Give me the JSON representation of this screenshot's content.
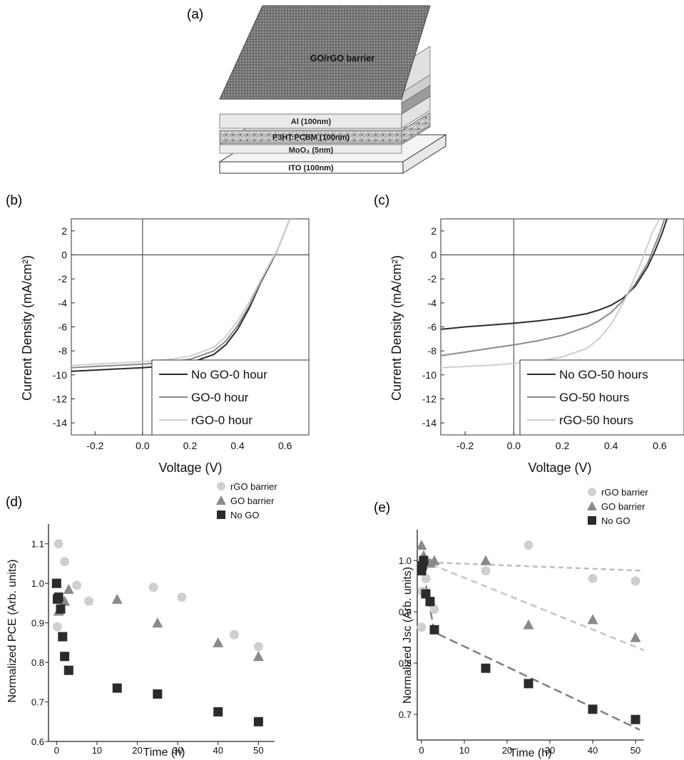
{
  "panels": {
    "a": {
      "label": "(a)",
      "layers": {
        "barrier": "GO/rGO barrier",
        "al": "Al (100nm)",
        "active": "P3HT:PCBM (100nm)",
        "moo3": "MoO₃ (5nm)",
        "ito": "ITO (100nm)"
      }
    },
    "b": {
      "label": "(b)"
    },
    "c": {
      "label": "(c)"
    },
    "d": {
      "label": "(d)"
    },
    "e": {
      "label": "(e)"
    }
  },
  "colors": {
    "dark": "#2b2b2b",
    "mid": "#8a8a8a",
    "light": "#cfcfcf",
    "fit_light": "#bdbdbd",
    "fit_mid": "#c4c4c4",
    "fit_dark": "#7f7f7f"
  },
  "chart_data": [
    {
      "id": "b",
      "type": "line",
      "xlabel": "Voltage (V)",
      "ylabel": "Current Density (mA/cm²)",
      "xlim": [
        -0.3,
        0.7
      ],
      "ylim": [
        -15,
        3
      ],
      "xticks": [
        -0.2,
        0.0,
        0.2,
        0.4,
        0.6
      ],
      "xtick_labels": [
        "-0.2",
        "0.0",
        "0.2",
        "0.4",
        "0.6"
      ],
      "yticks": [
        2,
        0,
        -2,
        -4,
        -6,
        -8,
        -10,
        -12,
        -14
      ],
      "ytick_labels": [
        "2",
        "0",
        "-2",
        "-4",
        "-6",
        "-8",
        "-10",
        "-12",
        "-14"
      ],
      "legend": "bottom-right",
      "series": [
        {
          "name": "No GO-0 hour",
          "color": "dark",
          "x": [
            -0.3,
            -0.2,
            -0.1,
            0.0,
            0.1,
            0.2,
            0.3,
            0.35,
            0.4,
            0.45,
            0.5,
            0.55,
            0.57,
            0.6,
            0.62
          ],
          "y": [
            -9.7,
            -9.6,
            -9.5,
            -9.4,
            -9.25,
            -9.0,
            -8.3,
            -7.5,
            -6.2,
            -4.4,
            -2.2,
            -0.3,
            0.5,
            2.0,
            3.0
          ]
        },
        {
          "name": "GO-0 hour",
          "color": "mid",
          "x": [
            -0.3,
            -0.2,
            -0.1,
            0.0,
            0.1,
            0.2,
            0.3,
            0.35,
            0.4,
            0.45,
            0.5,
            0.55,
            0.57,
            0.6,
            0.62
          ],
          "y": [
            -9.4,
            -9.3,
            -9.2,
            -9.1,
            -8.95,
            -8.7,
            -8.0,
            -7.2,
            -5.9,
            -4.2,
            -2.1,
            -0.2,
            0.5,
            2.0,
            3.0
          ]
        },
        {
          "name": "rGO-0 hour",
          "color": "light",
          "x": [
            -0.3,
            -0.2,
            -0.1,
            0.0,
            0.1,
            0.2,
            0.3,
            0.35,
            0.4,
            0.45,
            0.5,
            0.55,
            0.57,
            0.6,
            0.62
          ],
          "y": [
            -9.2,
            -9.1,
            -9.0,
            -8.9,
            -8.75,
            -8.45,
            -7.7,
            -6.8,
            -5.5,
            -3.9,
            -2.0,
            -0.2,
            0.5,
            2.0,
            3.0
          ]
        }
      ]
    },
    {
      "id": "c",
      "type": "line",
      "xlabel": "Voltage (V)",
      "ylabel": "Current Density (mA/cm²)",
      "xlim": [
        -0.3,
        0.7
      ],
      "ylim": [
        -15,
        3
      ],
      "xticks": [
        -0.2,
        0.0,
        0.2,
        0.4,
        0.6
      ],
      "xtick_labels": [
        "-0.2",
        "0.0",
        "0.2",
        "0.4",
        "0.6"
      ],
      "yticks": [
        2,
        0,
        -2,
        -4,
        -6,
        -8,
        -10,
        -12,
        -14
      ],
      "ytick_labels": [
        "2",
        "0",
        "-2",
        "-4",
        "-6",
        "-8",
        "-10",
        "-12",
        "-14"
      ],
      "legend": "bottom-right",
      "series": [
        {
          "name": "No GO-50 hours",
          "color": "dark",
          "x": [
            -0.3,
            -0.2,
            -0.1,
            0.0,
            0.1,
            0.2,
            0.3,
            0.35,
            0.4,
            0.45,
            0.5,
            0.55,
            0.58,
            0.61,
            0.63
          ],
          "y": [
            -6.2,
            -6.0,
            -5.85,
            -5.7,
            -5.5,
            -5.25,
            -4.9,
            -4.6,
            -4.2,
            -3.6,
            -2.6,
            -1.0,
            0.3,
            1.8,
            3.0
          ]
        },
        {
          "name": "GO-50 hours",
          "color": "mid",
          "x": [
            -0.3,
            -0.2,
            -0.1,
            0.0,
            0.1,
            0.2,
            0.3,
            0.35,
            0.4,
            0.45,
            0.5,
            0.55,
            0.57,
            0.6,
            0.62
          ],
          "y": [
            -8.4,
            -8.1,
            -7.8,
            -7.5,
            -7.15,
            -6.7,
            -6.0,
            -5.5,
            -4.8,
            -3.8,
            -2.4,
            -0.7,
            0.3,
            1.8,
            3.0
          ]
        },
        {
          "name": "rGO-50 hours",
          "color": "light",
          "x": [
            -0.3,
            -0.2,
            -0.1,
            0.0,
            0.1,
            0.2,
            0.3,
            0.35,
            0.4,
            0.45,
            0.5,
            0.53,
            0.55,
            0.57,
            0.6
          ],
          "y": [
            -9.4,
            -9.3,
            -9.2,
            -9.05,
            -8.85,
            -8.5,
            -7.8,
            -7.0,
            -5.8,
            -4.0,
            -1.8,
            -0.3,
            0.8,
            1.9,
            3.0
          ]
        }
      ]
    },
    {
      "id": "d",
      "type": "scatter",
      "xlabel": "Time (h)",
      "ylabel": "Normalized PCE (Arb. units)",
      "xlim": [
        -2,
        54
      ],
      "ylim": [
        0.6,
        1.15
      ],
      "xticks": [
        0,
        10,
        20,
        30,
        40,
        50
      ],
      "xtick_labels": [
        "0",
        "10",
        "20",
        "30",
        "40",
        "50"
      ],
      "yticks": [
        0.6,
        0.7,
        0.8,
        0.9,
        1.0,
        1.1
      ],
      "ytick_labels": [
        "0.6",
        "0.7",
        "0.8",
        "0.9",
        "1.0",
        "1.1"
      ],
      "legend": "top-right",
      "series": [
        {
          "name": "rGO barrier",
          "marker": "circle",
          "color": "light",
          "x": [
            0,
            0.2,
            0.5,
            1,
            2,
            5,
            8,
            24,
            31,
            44,
            50
          ],
          "y": [
            1.0,
            0.89,
            1.1,
            0.93,
            1.055,
            0.995,
            0.955,
            0.99,
            0.965,
            0.87,
            0.84
          ]
        },
        {
          "name": "GO barrier",
          "marker": "triangle",
          "color": "mid",
          "x": [
            0,
            0.5,
            1,
            2,
            3,
            15,
            25,
            40,
            50
          ],
          "y": [
            1.0,
            0.93,
            0.965,
            0.955,
            0.985,
            0.96,
            0.9,
            0.85,
            0.815
          ]
        },
        {
          "name": "No GO",
          "marker": "square",
          "color": "dark",
          "x": [
            0,
            0.2,
            0.5,
            1,
            1.5,
            2,
            3,
            15,
            25,
            40,
            50
          ],
          "y": [
            1.0,
            0.96,
            0.965,
            0.935,
            0.865,
            0.815,
            0.78,
            0.735,
            0.72,
            0.675,
            0.65
          ]
        }
      ]
    },
    {
      "id": "e",
      "type": "scatter",
      "xlabel": "Time (h)",
      "ylabel": "Normalized Jsc (Arb. units)",
      "xlim": [
        -1,
        52
      ],
      "ylim": [
        0.65,
        1.06
      ],
      "xticks": [
        0,
        10,
        20,
        30,
        40,
        50
      ],
      "xtick_labels": [
        "0",
        "10",
        "20",
        "30",
        "40",
        "50"
      ],
      "yticks": [
        0.7,
        0.8,
        0.9,
        1.0
      ],
      "ytick_labels": [
        "0.7",
        "0.8",
        "0.9",
        "1.0"
      ],
      "legend": "top-right",
      "series": [
        {
          "name": "rGO barrier",
          "marker": "circle",
          "color": "light",
          "x": [
            0,
            0.2,
            0.5,
            1,
            2,
            3,
            15,
            25,
            40,
            50
          ],
          "y": [
            0.87,
            0.94,
            1.0,
            0.965,
            0.995,
            0.905,
            0.98,
            1.03,
            0.965,
            0.96
          ]
        },
        {
          "name": "GO barrier",
          "marker": "triangle",
          "color": "mid",
          "x": [
            0,
            0.5,
            1,
            2,
            3,
            15,
            25,
            40,
            50
          ],
          "y": [
            1.03,
            1.01,
            1.0,
            0.995,
            1.0,
            1.0,
            0.875,
            0.885,
            0.85
          ]
        },
        {
          "name": "No GO",
          "marker": "square",
          "color": "dark",
          "x": [
            0,
            0.2,
            0.5,
            1,
            2,
            3,
            15,
            25,
            40,
            50
          ],
          "y": [
            0.98,
            0.99,
            1.0,
            0.935,
            0.92,
            0.865,
            0.79,
            0.76,
            0.71,
            0.69
          ]
        }
      ],
      "fits": [
        {
          "color": "fit_light",
          "dash": "7,5",
          "x": [
            0,
            52
          ],
          "y": [
            0.997,
            0.98
          ]
        },
        {
          "color": "fit_mid",
          "dash": "9,6",
          "x": [
            0,
            52
          ],
          "y": [
            1.0,
            0.825
          ]
        },
        {
          "color": "fit_dark",
          "dash": "12,6",
          "x": [
            0,
            3,
            51
          ],
          "y": [
            1.0,
            0.86,
            0.67
          ]
        }
      ]
    }
  ]
}
